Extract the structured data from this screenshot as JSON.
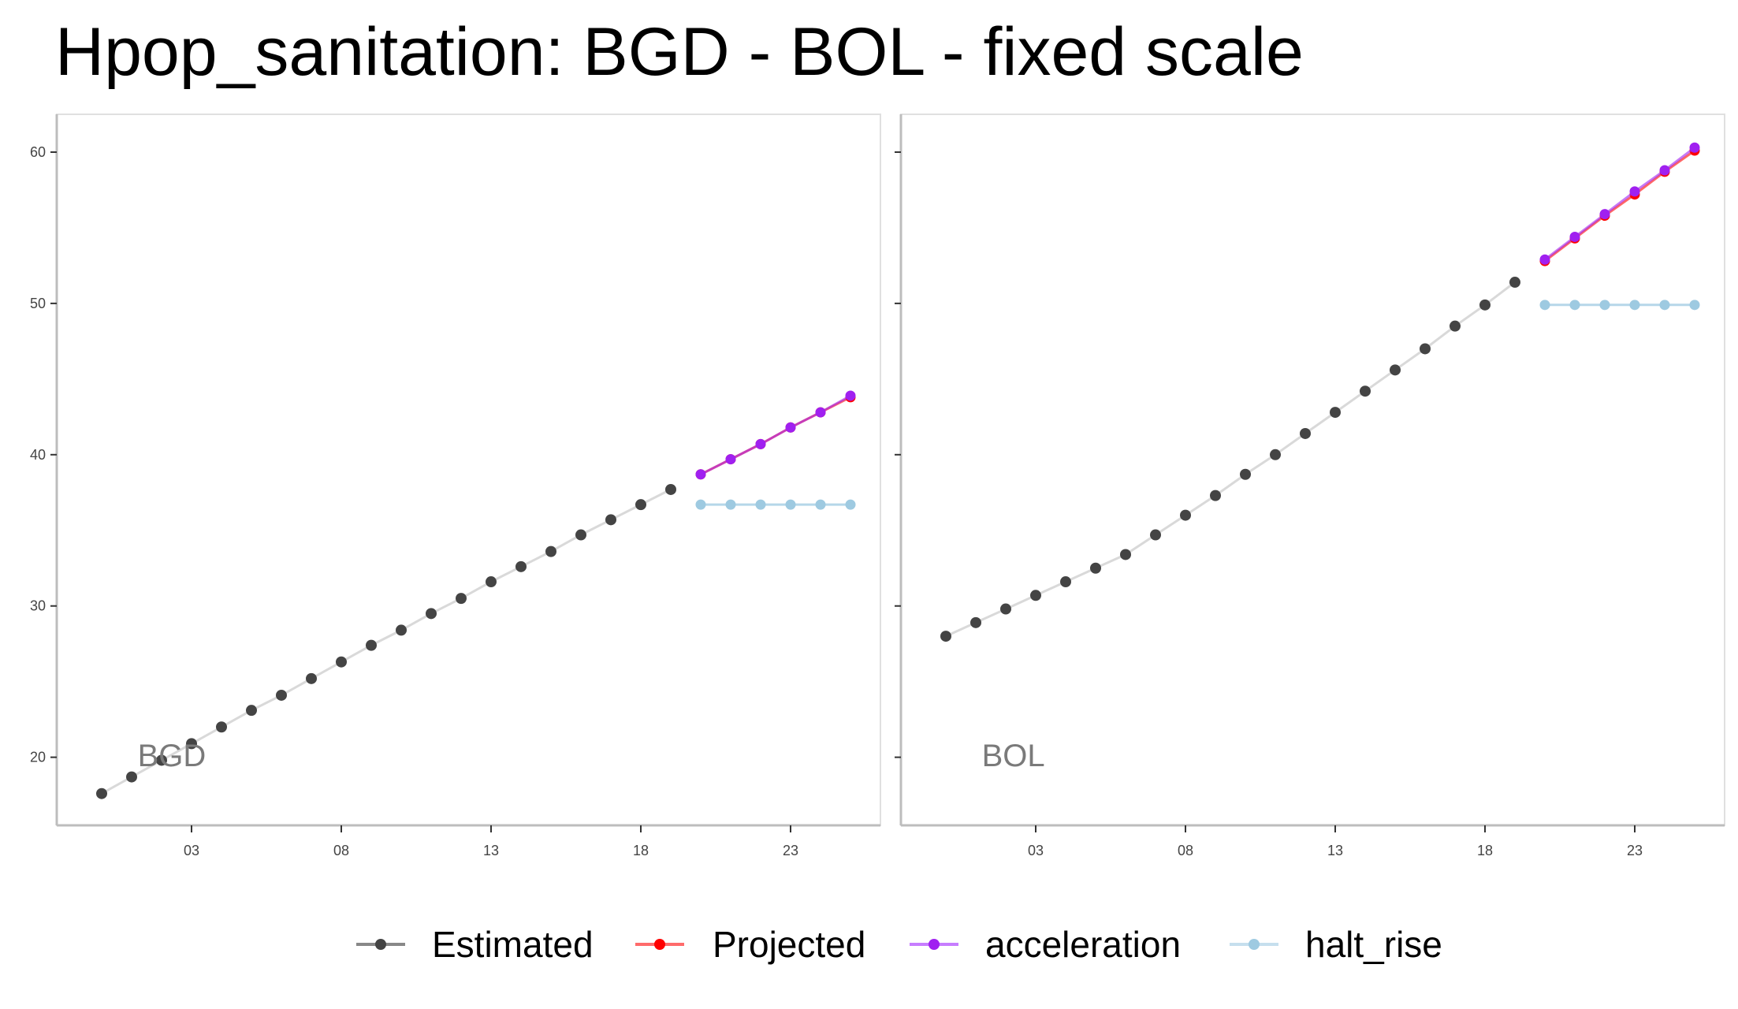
{
  "chart_data": {
    "type": "line",
    "title": "Hpop_sanitation: BGD - BOL - fixed scale",
    "xlabel": "",
    "ylabel": "",
    "ylim": [
      15.5,
      62.5
    ],
    "xlim": [
      -1.5,
      26
    ],
    "x_ticks": [
      3,
      8,
      13,
      18,
      23
    ],
    "x_tick_labels": [
      "03",
      "08",
      "13",
      "18",
      "23"
    ],
    "y_ticks": [
      20,
      30,
      40,
      50,
      60
    ],
    "y_tick_labels": [
      "20",
      "30",
      "40",
      "50",
      "60"
    ],
    "grid": false,
    "legend_position": "bottom",
    "legend": [
      "Estimated",
      "Projected",
      "acceleration",
      "halt_rise"
    ],
    "colors": {
      "Estimated": "#444444",
      "Projected": "#ff0000",
      "acceleration": "#a020f0",
      "halt_rise": "#9ecae1",
      "estimated_line": "#d9d9d9",
      "panel_label": "#7a7a7a",
      "axis": "#bdbdbd"
    },
    "panels": [
      {
        "label": "BGD",
        "series": [
          {
            "name": "Estimated",
            "x": [
              0,
              1,
              2,
              3,
              4,
              5,
              6,
              7,
              8,
              9,
              10,
              11,
              12,
              13,
              14,
              15,
              16,
              17,
              18,
              19
            ],
            "values": [
              17.6,
              18.7,
              19.8,
              20.9,
              22.0,
              23.1,
              24.1,
              25.2,
              26.3,
              27.4,
              28.4,
              29.5,
              30.5,
              31.6,
              32.6,
              33.6,
              34.7,
              35.7,
              36.7,
              37.7
            ]
          },
          {
            "name": "Projected",
            "x": [
              20,
              21,
              22,
              23,
              24,
              25
            ],
            "values": [
              38.7,
              39.7,
              40.7,
              41.8,
              42.8,
              43.8
            ]
          },
          {
            "name": "acceleration",
            "x": [
              20,
              21,
              22,
              23,
              24,
              25
            ],
            "values": [
              38.7,
              39.7,
              40.7,
              41.8,
              42.8,
              43.9
            ]
          },
          {
            "name": "halt_rise",
            "x": [
              20,
              21,
              22,
              23,
              24,
              25
            ],
            "values": [
              36.7,
              36.7,
              36.7,
              36.7,
              36.7,
              36.7
            ]
          }
        ]
      },
      {
        "label": "BOL",
        "series": [
          {
            "name": "Estimated",
            "x": [
              0,
              1,
              2,
              3,
              4,
              5,
              6,
              7,
              8,
              9,
              10,
              11,
              12,
              13,
              14,
              15,
              16,
              17,
              18,
              19
            ],
            "values": [
              28.0,
              28.9,
              29.8,
              30.7,
              31.6,
              32.5,
              33.4,
              34.7,
              36.0,
              37.3,
              38.7,
              40.0,
              41.4,
              42.8,
              44.2,
              45.6,
              47.0,
              48.5,
              49.9,
              51.4
            ]
          },
          {
            "name": "Projected",
            "x": [
              20,
              21,
              22,
              23,
              24,
              25
            ],
            "values": [
              52.8,
              54.3,
              55.8,
              57.2,
              58.7,
              60.1
            ]
          },
          {
            "name": "acceleration",
            "x": [
              20,
              21,
              22,
              23,
              24,
              25
            ],
            "values": [
              52.9,
              54.4,
              55.9,
              57.4,
              58.8,
              60.3
            ]
          },
          {
            "name": "halt_rise",
            "x": [
              20,
              21,
              22,
              23,
              24,
              25
            ],
            "values": [
              49.9,
              49.9,
              49.9,
              49.9,
              49.9,
              49.9
            ]
          }
        ]
      }
    ]
  }
}
